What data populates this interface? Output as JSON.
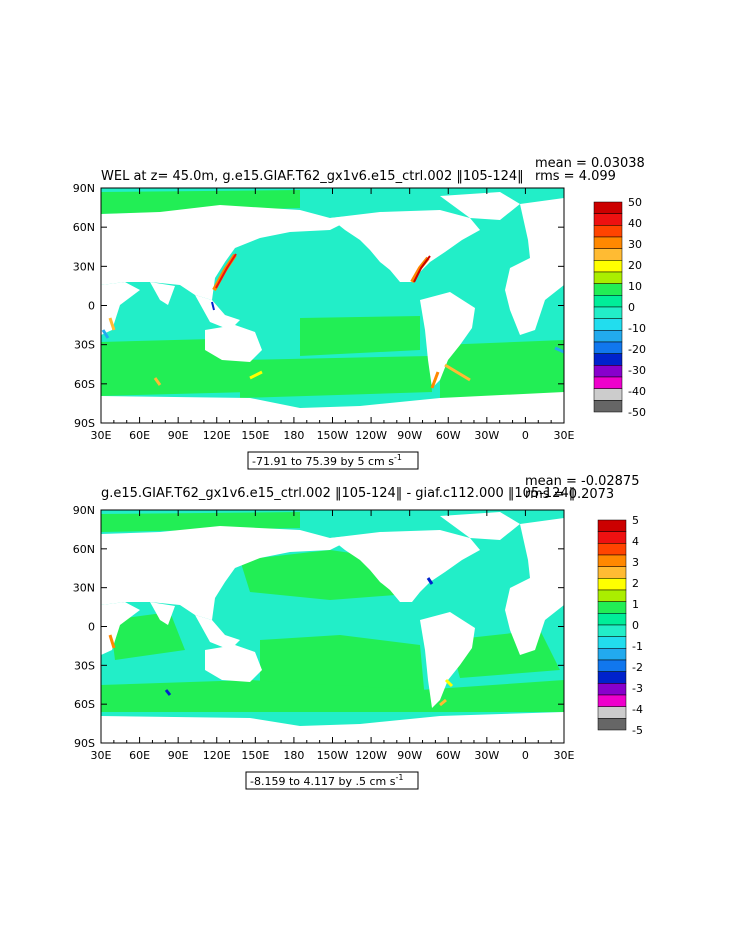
{
  "colors": {
    "ocean_base": "#22eec8",
    "ocean_green": "#22ee55",
    "land": "#ffffff",
    "frame": "#000000"
  },
  "chart_data": [
    {
      "type": "heatmap",
      "title": "WEL at z=  45.0m, g.e15.GIAF.T62_gx1v6.e15_ctrl.002 ‖105-124‖",
      "stats": {
        "mean": "mean = 0.03038",
        "rms": "rms = 4.099"
      },
      "x_ticks": [
        "30E",
        "60E",
        "90E",
        "120E",
        "150E",
        "180",
        "150W",
        "120W",
        "90W",
        "60W",
        "30W",
        "0",
        "30E"
      ],
      "y_ticks": [
        "90N",
        "60N",
        "30N",
        "0",
        "30S",
        "60S",
        "90S"
      ],
      "colorbar": {
        "labels": [
          "50",
          "40",
          "30",
          "20",
          "10",
          "0",
          "-10",
          "-20",
          "-30",
          "-40",
          "-50"
        ],
        "colors": [
          "#cc0000",
          "#ee1111",
          "#ff4400",
          "#ff8800",
          "#ffbb33",
          "#ffff00",
          "#aaee00",
          "#22ee55",
          "#00ee99",
          "#22eec8",
          "#22ddee",
          "#22aaee",
          "#1177ee",
          "#0022cc",
          "#8800cc",
          "#ee00cc",
          "#cccccc",
          "#666666"
        ]
      },
      "contour_info": "-71.91 to 75.39 by 5 cm s",
      "unit_superscript": "-1"
    },
    {
      "type": "heatmap",
      "title": "g.e15.GIAF.T62_gx1v6.e15_ctrl.002 ‖105-124‖ - giaf.c112.000 ‖105-124‖",
      "stats": {
        "mean": "mean = -0.02875",
        "rms": "rms = 0.2073"
      },
      "x_ticks": [
        "30E",
        "60E",
        "90E",
        "120E",
        "150E",
        "180",
        "150W",
        "120W",
        "90W",
        "60W",
        "30W",
        "0",
        "30E"
      ],
      "y_ticks": [
        "90N",
        "60N",
        "30N",
        "0",
        "30S",
        "60S",
        "90S"
      ],
      "colorbar": {
        "labels": [
          "5",
          "4",
          "3",
          "2",
          "1",
          "0",
          "-1",
          "-2",
          "-3",
          "-4",
          "-5"
        ],
        "colors": [
          "#cc0000",
          "#ee1111",
          "#ff4400",
          "#ff8800",
          "#ffbb33",
          "#ffff00",
          "#aaee00",
          "#22ee55",
          "#00ee99",
          "#22eec8",
          "#22ddee",
          "#22aaee",
          "#1177ee",
          "#0022cc",
          "#8800cc",
          "#ee00cc",
          "#cccccc",
          "#666666"
        ]
      },
      "contour_info": "-8.159 to 4.117 by .5 cm s",
      "unit_superscript": "-1"
    }
  ]
}
